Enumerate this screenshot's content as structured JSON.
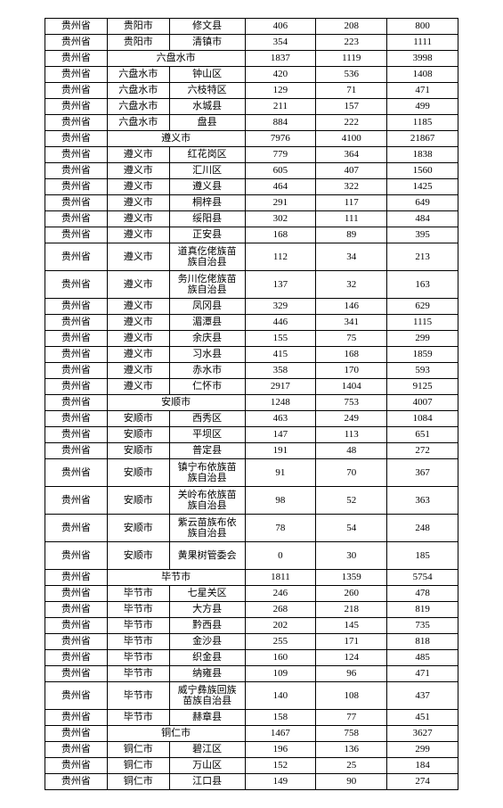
{
  "rows": [
    [
      "贵州省",
      "贵阳市",
      "修文县",
      "406",
      "208",
      "800"
    ],
    [
      "贵州省",
      "贵阳市",
      "清镇市",
      "354",
      "223",
      "1111"
    ],
    [
      "贵州省",
      "六盘水市",
      "",
      "1837",
      "1119",
      "3998"
    ],
    [
      "贵州省",
      "六盘水市",
      "钟山区",
      "420",
      "536",
      "1408"
    ],
    [
      "贵州省",
      "六盘水市",
      "六枝特区",
      "129",
      "71",
      "471"
    ],
    [
      "贵州省",
      "六盘水市",
      "水城县",
      "211",
      "157",
      "499"
    ],
    [
      "贵州省",
      "六盘水市",
      "盘县",
      "884",
      "222",
      "1185"
    ],
    [
      "贵州省",
      "遵义市",
      "",
      "7976",
      "4100",
      "21867"
    ],
    [
      "贵州省",
      "遵义市",
      "红花岗区",
      "779",
      "364",
      "1838"
    ],
    [
      "贵州省",
      "遵义市",
      "汇川区",
      "605",
      "407",
      "1560"
    ],
    [
      "贵州省",
      "遵义市",
      "遵义县",
      "464",
      "322",
      "1425"
    ],
    [
      "贵州省",
      "遵义市",
      "桐梓县",
      "291",
      "117",
      "649"
    ],
    [
      "贵州省",
      "遵义市",
      "绥阳县",
      "302",
      "111",
      "484"
    ],
    [
      "贵州省",
      "遵义市",
      "正安县",
      "168",
      "89",
      "395"
    ],
    [
      "贵州省",
      "遵义市",
      "道真仡佬族苗族自治县",
      "112",
      "34",
      "213"
    ],
    [
      "贵州省",
      "遵义市",
      "务川仡佬族苗族自治县",
      "137",
      "32",
      "163"
    ],
    [
      "贵州省",
      "遵义市",
      "凤冈县",
      "329",
      "146",
      "629"
    ],
    [
      "贵州省",
      "遵义市",
      "湄潭县",
      "446",
      "341",
      "1115"
    ],
    [
      "贵州省",
      "遵义市",
      "余庆县",
      "155",
      "75",
      "299"
    ],
    [
      "贵州省",
      "遵义市",
      "习水县",
      "415",
      "168",
      "1859"
    ],
    [
      "贵州省",
      "遵义市",
      "赤水市",
      "358",
      "170",
      "593"
    ],
    [
      "贵州省",
      "遵义市",
      "仁怀市",
      "2917",
      "1404",
      "9125"
    ],
    [
      "贵州省",
      "安顺市",
      "",
      "1248",
      "753",
      "4007"
    ],
    [
      "贵州省",
      "安顺市",
      "西秀区",
      "463",
      "249",
      "1084"
    ],
    [
      "贵州省",
      "安顺市",
      "平坝区",
      "147",
      "113",
      "651"
    ],
    [
      "贵州省",
      "安顺市",
      "普定县",
      "191",
      "48",
      "272"
    ],
    [
      "贵州省",
      "安顺市",
      "镇宁布依族苗族自治县",
      "91",
      "70",
      "367"
    ],
    [
      "贵州省",
      "安顺市",
      "关岭布依族苗族自治县",
      "98",
      "52",
      "363"
    ],
    [
      "贵州省",
      "安顺市",
      "紫云苗族布依族自治县",
      "78",
      "54",
      "248"
    ],
    [
      "贵州省",
      "安顺市",
      "黄果树管委会",
      "0",
      "30",
      "185"
    ],
    [
      "贵州省",
      "毕节市",
      "",
      "1811",
      "1359",
      "5754"
    ],
    [
      "贵州省",
      "毕节市",
      "七星关区",
      "246",
      "260",
      "478"
    ],
    [
      "贵州省",
      "毕节市",
      "大方县",
      "268",
      "218",
      "819"
    ],
    [
      "贵州省",
      "毕节市",
      "黔西县",
      "202",
      "145",
      "735"
    ],
    [
      "贵州省",
      "毕节市",
      "金沙县",
      "255",
      "171",
      "818"
    ],
    [
      "贵州省",
      "毕节市",
      "织金县",
      "160",
      "124",
      "485"
    ],
    [
      "贵州省",
      "毕节市",
      "纳雍县",
      "109",
      "96",
      "471"
    ],
    [
      "贵州省",
      "毕节市",
      "威宁彝族回族苗族自治县",
      "140",
      "108",
      "437"
    ],
    [
      "贵州省",
      "毕节市",
      "赫章县",
      "158",
      "77",
      "451"
    ],
    [
      "贵州省",
      "铜仁市",
      "",
      "1467",
      "758",
      "3627"
    ],
    [
      "贵州省",
      "铜仁市",
      "碧江区",
      "196",
      "136",
      "299"
    ],
    [
      "贵州省",
      "铜仁市",
      "万山区",
      "152",
      "25",
      "184"
    ],
    [
      "贵州省",
      "铜仁市",
      "江口县",
      "149",
      "90",
      "274"
    ]
  ],
  "spans": {
    "2": true,
    "7": true,
    "22": true,
    "30": true,
    "39": true
  },
  "tall": {
    "14": true,
    "15": true,
    "26": true,
    "27": true,
    "28": true,
    "29": true,
    "37": true
  }
}
